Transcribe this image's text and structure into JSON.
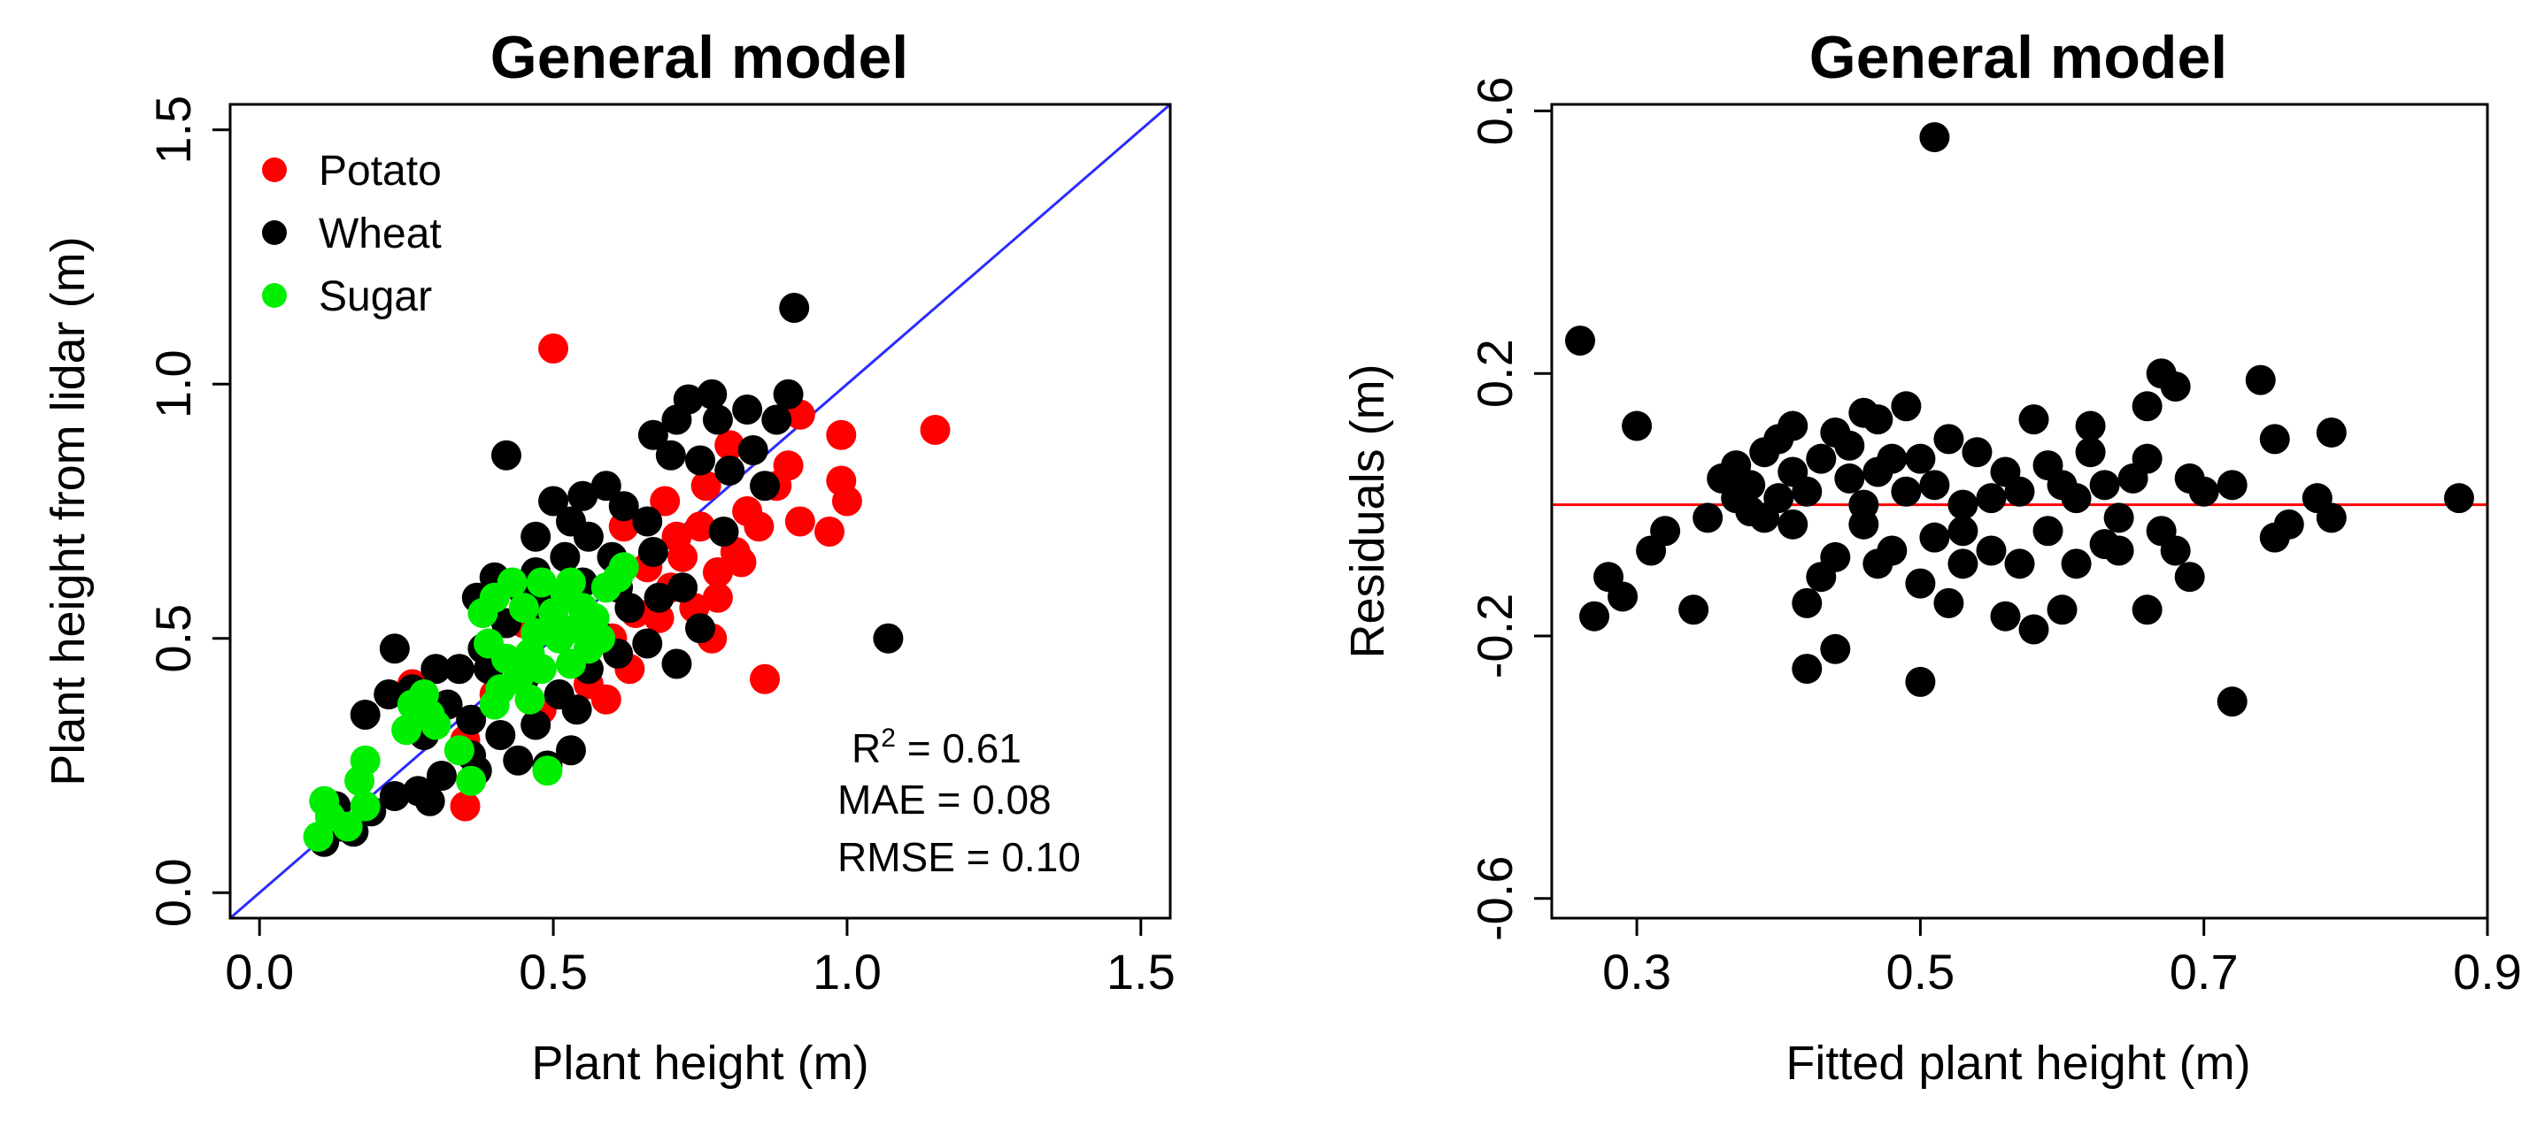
{
  "chart_data": [
    {
      "type": "scatter",
      "title": "General model",
      "xlabel": "Plant height (m)",
      "ylabel": "Plant height from lidar (m)",
      "xlim": [
        -0.05,
        1.55
      ],
      "ylim": [
        -0.05,
        1.55
      ],
      "xticks": [
        0.0,
        0.5,
        1.0,
        1.5
      ],
      "xtick_labels": [
        "0.0",
        "0.5",
        "1.0",
        "1.5"
      ],
      "yticks": [
        0.0,
        0.5,
        1.0,
        1.5
      ],
      "ytick_labels": [
        "0.0",
        "0.5",
        "1.0",
        "1.5"
      ],
      "reference_line": {
        "label": "1:1 line",
        "color": "#2b2bff",
        "from": [
          -0.05,
          -0.05
        ],
        "to": [
          1.55,
          1.55
        ]
      },
      "legend_position": "top-left",
      "stats": {
        "r2_prefix": "R",
        "r2_sup": "2",
        "r2_value": " = 0.61",
        "mae": "MAE = 0.08",
        "rmse": "RMSE = 0.10"
      },
      "series": [
        {
          "name": "Potato",
          "color": "#ff0000",
          "points": [
            [
              0.5,
              1.07
            ],
            [
              1.15,
              0.91
            ],
            [
              0.99,
              0.9
            ],
            [
              0.92,
              0.94
            ],
            [
              0.9,
              0.84
            ],
            [
              0.99,
              0.81
            ],
            [
              1.0,
              0.77
            ],
            [
              0.92,
              0.73
            ],
            [
              0.97,
              0.71
            ],
            [
              0.86,
              0.42
            ],
            [
              0.77,
              0.5
            ],
            [
              0.8,
              0.88
            ],
            [
              0.83,
              0.75
            ],
            [
              0.85,
              0.72
            ],
            [
              0.81,
              0.67
            ],
            [
              0.78,
              0.63
            ],
            [
              0.75,
              0.72
            ],
            [
              0.72,
              0.66
            ],
            [
              0.7,
              0.6
            ],
            [
              0.74,
              0.56
            ],
            [
              0.68,
              0.54
            ],
            [
              0.64,
              0.55
            ],
            [
              0.66,
              0.64
            ],
            [
              0.62,
              0.72
            ],
            [
              0.6,
              0.5
            ],
            [
              0.63,
              0.44
            ],
            [
              0.59,
              0.38
            ],
            [
              0.56,
              0.41
            ],
            [
              0.48,
              0.36
            ],
            [
              0.45,
              0.53
            ],
            [
              0.4,
              0.39
            ],
            [
              0.35,
              0.3
            ],
            [
              0.35,
              0.17
            ],
            [
              0.26,
              0.41
            ],
            [
              0.78,
              0.58
            ],
            [
              0.71,
              0.7
            ],
            [
              0.69,
              0.77
            ],
            [
              0.88,
              0.8
            ],
            [
              0.76,
              0.8
            ],
            [
              0.82,
              0.65
            ]
          ]
        },
        {
          "name": "Wheat",
          "color": "#000000",
          "points": [
            [
              0.91,
              1.15
            ],
            [
              1.07,
              0.5
            ],
            [
              0.9,
              0.98
            ],
            [
              0.88,
              0.93
            ],
            [
              0.83,
              0.95
            ],
            [
              0.77,
              0.98
            ],
            [
              0.78,
              0.93
            ],
            [
              0.73,
              0.97
            ],
            [
              0.71,
              0.93
            ],
            [
              0.67,
              0.9
            ],
            [
              0.7,
              0.86
            ],
            [
              0.75,
              0.85
            ],
            [
              0.8,
              0.83
            ],
            [
              0.42,
              0.86
            ],
            [
              0.59,
              0.8
            ],
            [
              0.55,
              0.78
            ],
            [
              0.5,
              0.77
            ],
            [
              0.62,
              0.76
            ],
            [
              0.66,
              0.73
            ],
            [
              0.56,
              0.7
            ],
            [
              0.52,
              0.66
            ],
            [
              0.47,
              0.63
            ],
            [
              0.4,
              0.62
            ],
            [
              0.45,
              0.59
            ],
            [
              0.49,
              0.56
            ],
            [
              0.37,
              0.58
            ],
            [
              0.42,
              0.53
            ],
            [
              0.38,
              0.48
            ],
            [
              0.34,
              0.44
            ],
            [
              0.23,
              0.48
            ],
            [
              0.3,
              0.44
            ],
            [
              0.26,
              0.4
            ],
            [
              0.22,
              0.39
            ],
            [
              0.18,
              0.35
            ],
            [
              0.32,
              0.37
            ],
            [
              0.45,
              0.42
            ],
            [
              0.51,
              0.39
            ],
            [
              0.56,
              0.44
            ],
            [
              0.61,
              0.47
            ],
            [
              0.66,
              0.49
            ],
            [
              0.71,
              0.45
            ],
            [
              0.75,
              0.52
            ],
            [
              0.68,
              0.58
            ],
            [
              0.61,
              0.6
            ],
            [
              0.54,
              0.36
            ],
            [
              0.47,
              0.33
            ],
            [
              0.41,
              0.31
            ],
            [
              0.36,
              0.27
            ],
            [
              0.31,
              0.23
            ],
            [
              0.27,
              0.2
            ],
            [
              0.23,
              0.19
            ],
            [
              0.19,
              0.16
            ],
            [
              0.14,
              0.13
            ],
            [
              0.11,
              0.1
            ],
            [
              0.16,
              0.12
            ],
            [
              0.29,
              0.18
            ],
            [
              0.37,
              0.24
            ],
            [
              0.44,
              0.26
            ],
            [
              0.53,
              0.28
            ],
            [
              0.49,
              0.25
            ],
            [
              0.57,
              0.52
            ],
            [
              0.63,
              0.56
            ],
            [
              0.72,
              0.6
            ],
            [
              0.79,
              0.71
            ],
            [
              0.86,
              0.8
            ],
            [
              0.53,
              0.73
            ],
            [
              0.47,
              0.7
            ],
            [
              0.6,
              0.66
            ],
            [
              0.36,
              0.34
            ],
            [
              0.28,
              0.31
            ],
            [
              0.13,
              0.17
            ],
            [
              0.39,
              0.44
            ],
            [
              0.55,
              0.61
            ],
            [
              0.67,
              0.67
            ],
            [
              0.84,
              0.87
            ]
          ]
        },
        {
          "name": "Sugar",
          "color": "#00ee00",
          "points": [
            [
              0.1,
              0.11
            ],
            [
              0.12,
              0.15
            ],
            [
              0.11,
              0.18
            ],
            [
              0.15,
              0.13
            ],
            [
              0.18,
              0.17
            ],
            [
              0.17,
              0.22
            ],
            [
              0.18,
              0.26
            ],
            [
              0.25,
              0.32
            ],
            [
              0.26,
              0.37
            ],
            [
              0.28,
              0.39
            ],
            [
              0.29,
              0.35
            ],
            [
              0.3,
              0.33
            ],
            [
              0.34,
              0.28
            ],
            [
              0.36,
              0.22
            ],
            [
              0.4,
              0.37
            ],
            [
              0.41,
              0.4
            ],
            [
              0.44,
              0.42
            ],
            [
              0.46,
              0.47
            ],
            [
              0.47,
              0.51
            ],
            [
              0.48,
              0.44
            ],
            [
              0.49,
              0.24
            ],
            [
              0.5,
              0.55
            ],
            [
              0.52,
              0.59
            ],
            [
              0.53,
              0.61
            ],
            [
              0.54,
              0.52
            ],
            [
              0.55,
              0.56
            ],
            [
              0.57,
              0.54
            ],
            [
              0.58,
              0.5
            ],
            [
              0.59,
              0.6
            ],
            [
              0.61,
              0.62
            ],
            [
              0.62,
              0.64
            ],
            [
              0.38,
              0.55
            ],
            [
              0.4,
              0.58
            ],
            [
              0.43,
              0.61
            ],
            [
              0.45,
              0.56
            ],
            [
              0.48,
              0.61
            ],
            [
              0.51,
              0.5
            ],
            [
              0.53,
              0.45
            ],
            [
              0.56,
              0.48
            ],
            [
              0.42,
              0.46
            ],
            [
              0.39,
              0.49
            ],
            [
              0.46,
              0.38
            ]
          ]
        }
      ]
    },
    {
      "type": "scatter",
      "title": "General model",
      "xlabel": "Fitted plant height (m)",
      "ylabel": "Residuals (m)",
      "xlim": [
        0.24,
        0.9
      ],
      "ylim": [
        -0.63,
        0.61
      ],
      "xticks": [
        0.3,
        0.5,
        0.7,
        0.9
      ],
      "xtick_labels": [
        "0.3",
        "0.5",
        "0.7",
        "0.9"
      ],
      "yticks": [
        -0.6,
        -0.2,
        0.2,
        0.6
      ],
      "ytick_labels": [
        "-0.6",
        "-0.2",
        "0.2",
        "0.6"
      ],
      "hline": {
        "y": 0.0,
        "color": "#ff0000"
      },
      "series": [
        {
          "name": "Residuals",
          "color": "#000000",
          "points": [
            [
              0.51,
              0.56
            ],
            [
              0.26,
              0.25
            ],
            [
              0.3,
              0.12
            ],
            [
              0.27,
              -0.17
            ],
            [
              0.28,
              -0.11
            ],
            [
              0.29,
              -0.14
            ],
            [
              0.31,
              -0.07
            ],
            [
              0.32,
              -0.04
            ],
            [
              0.34,
              -0.16
            ],
            [
              0.35,
              -0.02
            ],
            [
              0.37,
              0.01
            ],
            [
              0.37,
              0.06
            ],
            [
              0.38,
              0.03
            ],
            [
              0.39,
              -0.02
            ],
            [
              0.39,
              0.08
            ],
            [
              0.4,
              0.1
            ],
            [
              0.4,
              0.01
            ],
            [
              0.41,
              0.05
            ],
            [
              0.41,
              0.12
            ],
            [
              0.42,
              0.02
            ],
            [
              0.42,
              -0.15
            ],
            [
              0.42,
              -0.25
            ],
            [
              0.43,
              0.07
            ],
            [
              0.43,
              -0.11
            ],
            [
              0.44,
              0.11
            ],
            [
              0.44,
              -0.22
            ],
            [
              0.45,
              0.09
            ],
            [
              0.45,
              0.04
            ],
            [
              0.46,
              0.14
            ],
            [
              0.46,
              -0.03
            ],
            [
              0.47,
              0.13
            ],
            [
              0.47,
              -0.09
            ],
            [
              0.48,
              0.07
            ],
            [
              0.48,
              -0.07
            ],
            [
              0.49,
              0.15
            ],
            [
              0.49,
              0.02
            ],
            [
              0.5,
              -0.12
            ],
            [
              0.5,
              -0.27
            ],
            [
              0.5,
              0.07
            ],
            [
              0.51,
              0.03
            ],
            [
              0.51,
              -0.05
            ],
            [
              0.52,
              0.1
            ],
            [
              0.52,
              -0.15
            ],
            [
              0.53,
              0.0
            ],
            [
              0.53,
              -0.09
            ],
            [
              0.54,
              0.08
            ],
            [
              0.55,
              0.01
            ],
            [
              0.55,
              -0.07
            ],
            [
              0.56,
              0.05
            ],
            [
              0.56,
              -0.17
            ],
            [
              0.57,
              0.02
            ],
            [
              0.57,
              -0.09
            ],
            [
              0.58,
              0.13
            ],
            [
              0.58,
              -0.19
            ],
            [
              0.59,
              -0.04
            ],
            [
              0.59,
              0.06
            ],
            [
              0.6,
              -0.16
            ],
            [
              0.61,
              -0.09
            ],
            [
              0.61,
              0.01
            ],
            [
              0.62,
              0.08
            ],
            [
              0.62,
              0.12
            ],
            [
              0.63,
              -0.06
            ],
            [
              0.63,
              0.03
            ],
            [
              0.64,
              -0.02
            ],
            [
              0.64,
              -0.07
            ],
            [
              0.65,
              0.04
            ],
            [
              0.66,
              0.07
            ],
            [
              0.66,
              -0.16
            ],
            [
              0.66,
              0.15
            ],
            [
              0.67,
              -0.04
            ],
            [
              0.67,
              0.2
            ],
            [
              0.68,
              0.18
            ],
            [
              0.68,
              -0.07
            ],
            [
              0.69,
              0.04
            ],
            [
              0.69,
              -0.11
            ],
            [
              0.7,
              0.02
            ],
            [
              0.72,
              0.03
            ],
            [
              0.72,
              -0.3
            ],
            [
              0.74,
              0.19
            ],
            [
              0.75,
              0.1
            ],
            [
              0.75,
              -0.05
            ],
            [
              0.76,
              -0.03
            ],
            [
              0.78,
              0.01
            ],
            [
              0.79,
              -0.02
            ],
            [
              0.79,
              0.11
            ],
            [
              0.88,
              0.01
            ],
            [
              0.46,
              0.0
            ],
            [
              0.53,
              -0.04
            ],
            [
              0.38,
              -0.01
            ],
            [
              0.44,
              -0.08
            ],
            [
              0.6,
              0.03
            ],
            [
              0.47,
              0.05
            ],
            [
              0.36,
              0.04
            ],
            [
              0.41,
              -0.03
            ]
          ]
        }
      ]
    }
  ]
}
